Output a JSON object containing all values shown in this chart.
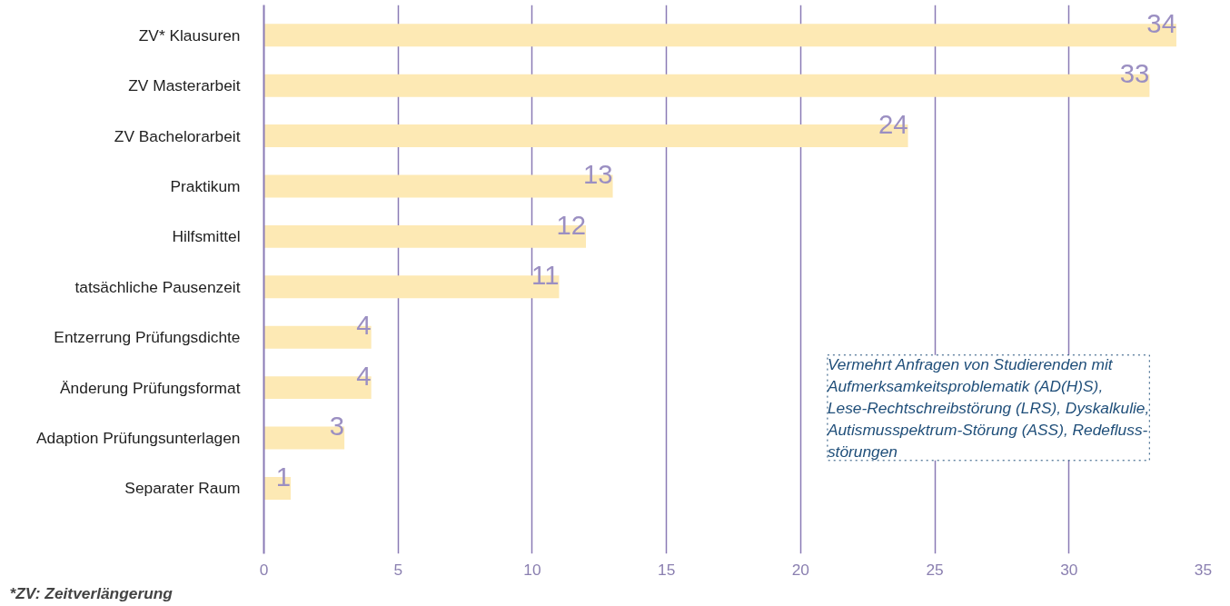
{
  "chart_data": {
    "type": "bar",
    "orientation": "horizontal",
    "categories": [
      "ZV* Klausuren",
      "ZV Masterarbeit",
      "ZV Bachelorarbeit",
      "Praktikum",
      "Hilfsmittel",
      "tatsächliche Pausenzeit",
      "Entzerrung Prüfungsdichte",
      "Änderung Prüfungsformat",
      "Adaption Prüfungsunterlagen",
      "Separater Raum"
    ],
    "values": [
      34,
      33,
      24,
      13,
      12,
      11,
      4,
      4,
      3,
      1
    ],
    "color": "#fde9b4",
    "data_labels": true,
    "xlim": [
      0,
      35
    ],
    "xticks": [
      0,
      5,
      10,
      15,
      20,
      25,
      30,
      35
    ],
    "grid": "x",
    "annotations": [
      "*ZV: Zeitverlängerung",
      "Vermehrt Anfragen von Studierenden mit\nAufmerksamkeitsproblematik (AD(H)S),\nLese-Rechtschreibstörung (LRS), Dyskalkulie,\nAutismusspektrum-Störung (ASS), Redefluss-\nstörungen"
    ]
  }
}
